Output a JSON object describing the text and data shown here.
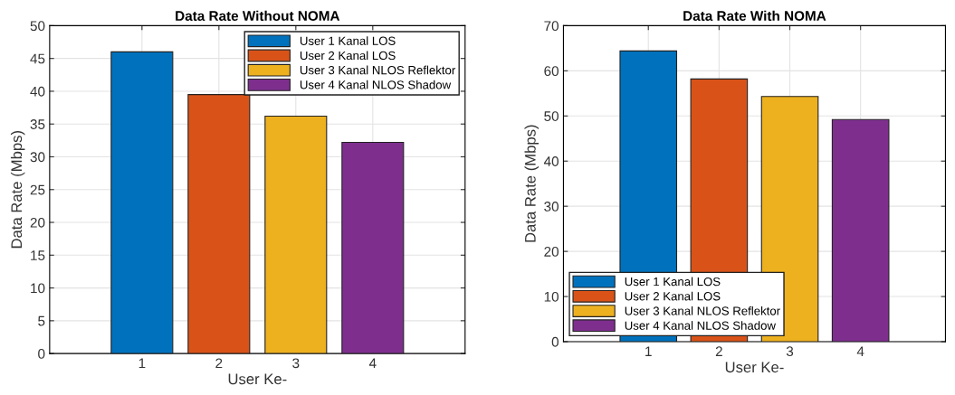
{
  "chart_data": [
    {
      "type": "bar",
      "title": "Data Rate Without NOMA",
      "xlabel": "User Ke-",
      "ylabel": "Data Rate (Mbps)",
      "xlim": [
        -0.2,
        5.2
      ],
      "xticks": [
        1,
        2,
        3,
        4
      ],
      "ylim": [
        0,
        50
      ],
      "yticks": [
        0,
        5,
        10,
        15,
        20,
        25,
        30,
        35,
        40,
        45,
        50
      ],
      "grid": true,
      "legend": "top right",
      "series": [
        {
          "name": "User 1 Kanal LOS",
          "color": "#0072bd",
          "x": [
            1
          ],
          "values": [
            46
          ]
        },
        {
          "name": "User 2 Kanal LOS",
          "color": "#d95319",
          "x": [
            2
          ],
          "values": [
            39.5
          ]
        },
        {
          "name": "User 3 Kanal NLOS Reflektor",
          "color": "#edb120",
          "x": [
            3
          ],
          "values": [
            36.2
          ]
        },
        {
          "name": "User 4 Kanal NLOS Shadow",
          "color": "#7e2f8e",
          "x": [
            4
          ],
          "values": [
            32.2
          ]
        }
      ]
    },
    {
      "type": "bar",
      "title": "Data Rate With NOMA",
      "xlabel": "User Ke-",
      "ylabel": "Data Rate (Mbps)",
      "xlim": [
        -0.2,
        5.2
      ],
      "xticks": [
        1,
        2,
        3,
        4
      ],
      "ylim": [
        0,
        70
      ],
      "yticks": [
        0,
        10,
        20,
        30,
        40,
        50,
        60,
        70
      ],
      "grid": true,
      "legend": "bottom left",
      "series": [
        {
          "name": "User 1 Kanal LOS",
          "color": "#0072bd",
          "x": [
            1
          ],
          "values": [
            64.4
          ]
        },
        {
          "name": "User 2 Kanal LOS",
          "color": "#d95319",
          "x": [
            2
          ],
          "values": [
            58.2
          ]
        },
        {
          "name": "User 3 Kanal NLOS Reflektor",
          "color": "#edb120",
          "x": [
            3
          ],
          "values": [
            54.3
          ]
        },
        {
          "name": "User 4 Kanal NLOS Shadow",
          "color": "#7e2f8e",
          "x": [
            4
          ],
          "values": [
            49.2
          ]
        }
      ]
    }
  ]
}
